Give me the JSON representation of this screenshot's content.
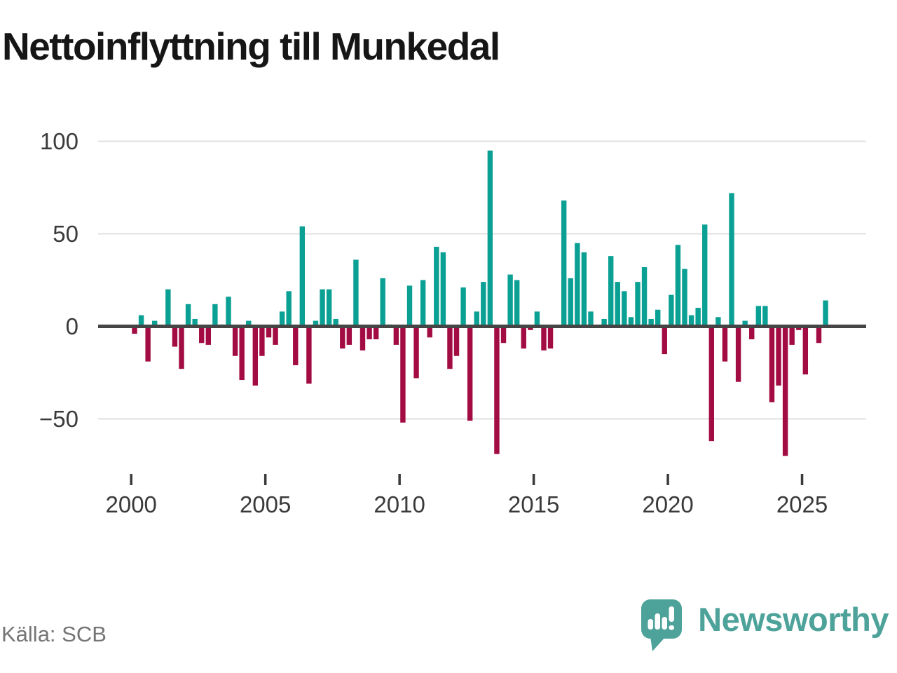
{
  "title": "Nettoinflyttning till Munkedal",
  "source_label": "Källa: SCB",
  "logo": {
    "text": "Newsworthy"
  },
  "colors": {
    "positive": "#0ba094",
    "negative": "#a20c42",
    "axis_line": "#454545",
    "gridline": "#e0e0e0",
    "tick_text": "#3a3a3a",
    "source_text": "#757575",
    "logo_teal": "#4da29a",
    "title_text": "#161616",
    "background": "#ffffff"
  },
  "chart_data": {
    "type": "bar",
    "title": "Nettoinflyttning till Munkedal",
    "xlabel": "",
    "ylabel": "",
    "frequency": "quarterly",
    "x_start": "2000-Q1",
    "x_end": "2025-Q4",
    "x_tick_labels": [
      "2000",
      "2005",
      "2010",
      "2015",
      "2020",
      "2025"
    ],
    "y_tick_labels": [
      "100",
      "50",
      "0",
      "−50"
    ],
    "y_ticks": [
      100,
      50,
      0,
      -50
    ],
    "ylim": [
      -75,
      105
    ],
    "grid": "horizontal",
    "legend": "none",
    "years": [
      {
        "year": 2000,
        "values": [
          -4,
          6,
          -19,
          3
        ]
      },
      {
        "year": 2001,
        "values": [
          0,
          20,
          -11,
          -23
        ]
      },
      {
        "year": 2002,
        "values": [
          12,
          4,
          -9,
          -10
        ]
      },
      {
        "year": 2003,
        "values": [
          12,
          1,
          16,
          -16
        ]
      },
      {
        "year": 2004,
        "values": [
          -29,
          3,
          -32,
          -16
        ]
      },
      {
        "year": 2005,
        "values": [
          -6,
          -10,
          8,
          19
        ]
      },
      {
        "year": 2006,
        "values": [
          -21,
          54,
          -31,
          3
        ]
      },
      {
        "year": 2007,
        "values": [
          20,
          20,
          4,
          -12
        ]
      },
      {
        "year": 2008,
        "values": [
          -10,
          36,
          -13,
          -7
        ]
      },
      {
        "year": 2009,
        "values": [
          -7,
          26,
          1,
          -10
        ]
      },
      {
        "year": 2010,
        "values": [
          -52,
          22,
          -28,
          25
        ]
      },
      {
        "year": 2011,
        "values": [
          -6,
          43,
          40,
          -23
        ]
      },
      {
        "year": 2012,
        "values": [
          -16,
          21,
          -51,
          8
        ]
      },
      {
        "year": 2013,
        "values": [
          24,
          95,
          -69,
          -9
        ]
      },
      {
        "year": 2014,
        "values": [
          28,
          25,
          -12,
          -2
        ]
      },
      {
        "year": 2015,
        "values": [
          8,
          -13,
          -12,
          0
        ]
      },
      {
        "year": 2016,
        "values": [
          68,
          26,
          45,
          40
        ]
      },
      {
        "year": 2017,
        "values": [
          8,
          0,
          4,
          38
        ]
      },
      {
        "year": 2018,
        "values": [
          24,
          19,
          5,
          24
        ]
      },
      {
        "year": 2019,
        "values": [
          32,
          4,
          9,
          -15
        ]
      },
      {
        "year": 2020,
        "values": [
          17,
          44,
          31,
          6
        ]
      },
      {
        "year": 2021,
        "values": [
          10,
          55,
          -62,
          5
        ]
      },
      {
        "year": 2022,
        "values": [
          -19,
          72,
          -30,
          3
        ]
      },
      {
        "year": 2023,
        "values": [
          -7,
          11,
          11,
          -41
        ]
      },
      {
        "year": 2024,
        "values": [
          -32,
          -70,
          -10,
          -2
        ]
      },
      {
        "year": 2025,
        "values": [
          -26,
          0,
          -9,
          14
        ]
      }
    ]
  }
}
